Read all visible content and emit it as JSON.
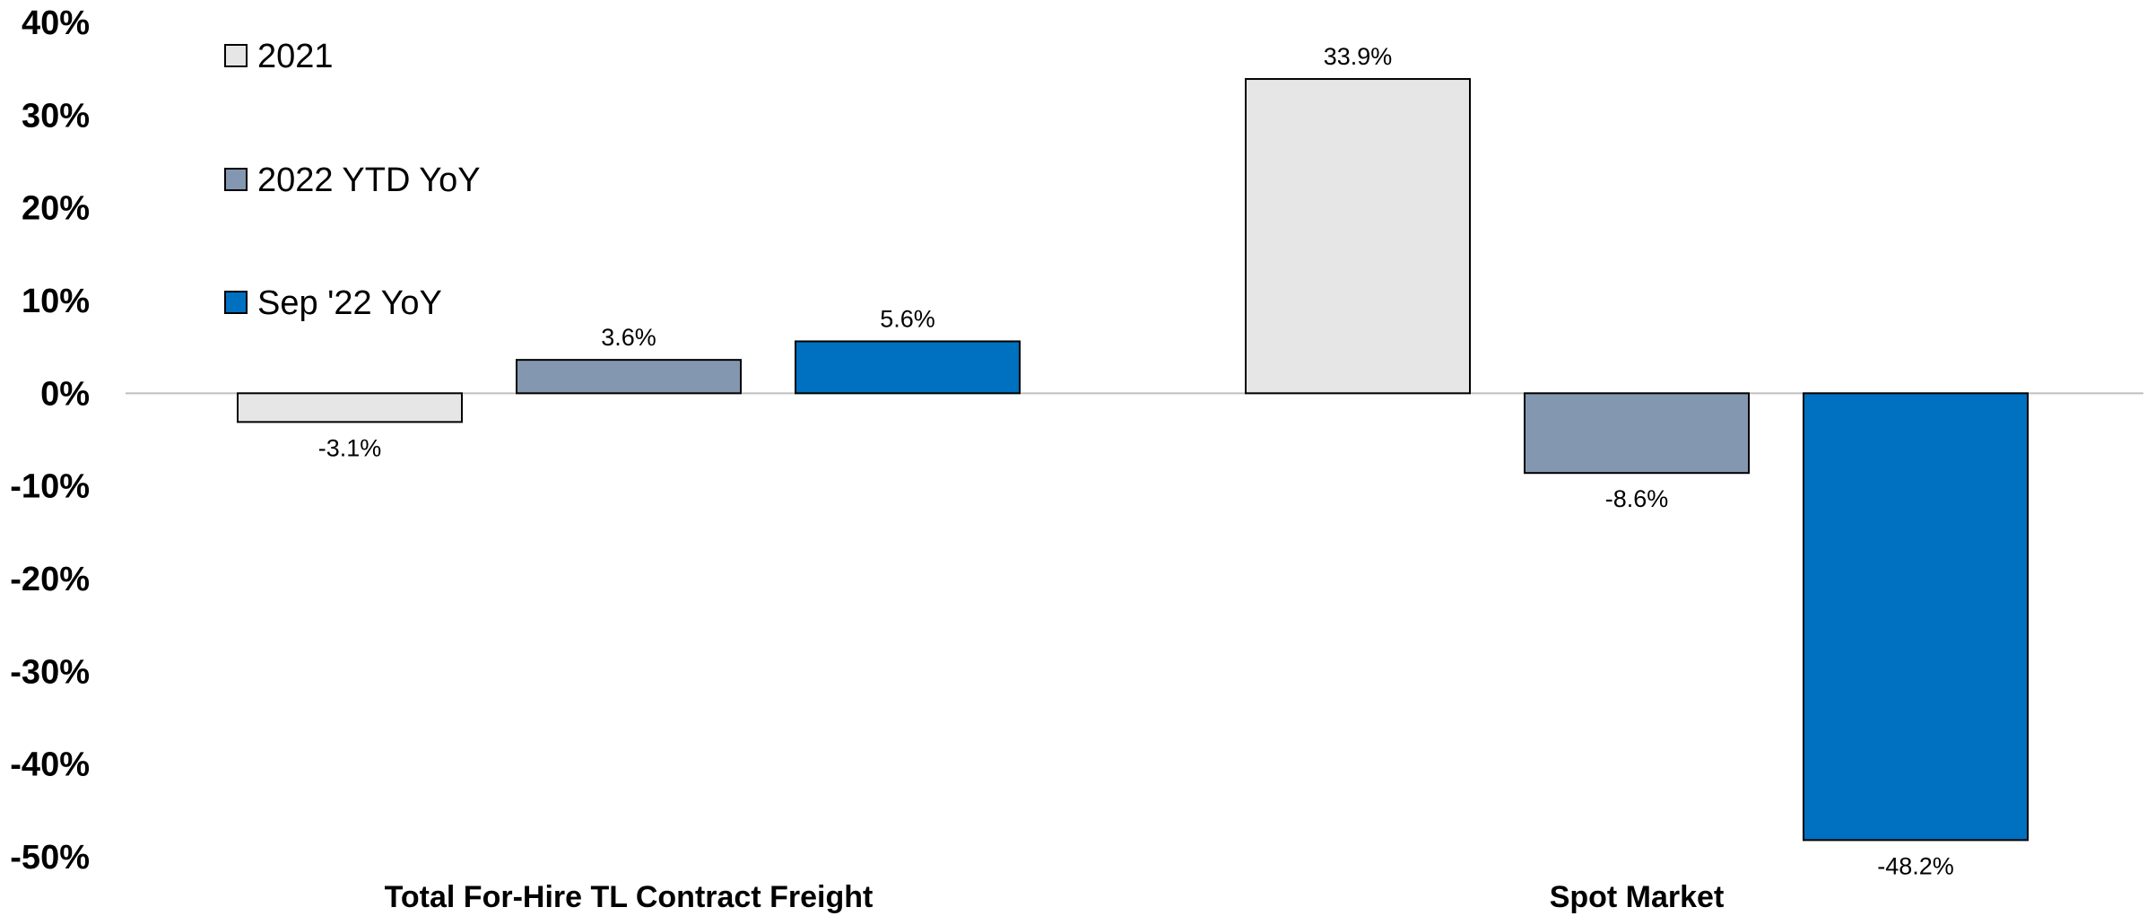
{
  "chart_data": {
    "type": "bar",
    "categories": [
      "Total For-Hire TL Contract Freight",
      "Spot Market"
    ],
    "series": [
      {
        "name": "2021",
        "values": [
          -3.1,
          33.9
        ],
        "color": "#E6E6E6"
      },
      {
        "name": "2022 YTD YoY",
        "values": [
          3.6,
          -8.6
        ],
        "color": "#8497B0"
      },
      {
        "name": "Sep '22 YoY",
        "values": [
          5.6,
          -48.2
        ],
        "color": "#0070C0"
      }
    ],
    "data_labels": [
      [
        "-3.1%",
        "33.9%"
      ],
      [
        "3.6%",
        "-8.6%"
      ],
      [
        "5.6%",
        "-48.2%"
      ]
    ],
    "title": "",
    "xlabel": "",
    "ylabel": "",
    "ylim": [
      -50,
      40
    ],
    "yticks": [
      40,
      30,
      20,
      10,
      0,
      -10,
      -20,
      -30,
      -40,
      -50
    ],
    "ytick_labels": [
      "40%",
      "30%",
      "20%",
      "10%",
      "0%",
      "-10%",
      "-20%",
      "-30%",
      "-40%",
      "-50%"
    ],
    "grid": false,
    "legend_position": "top-left"
  }
}
